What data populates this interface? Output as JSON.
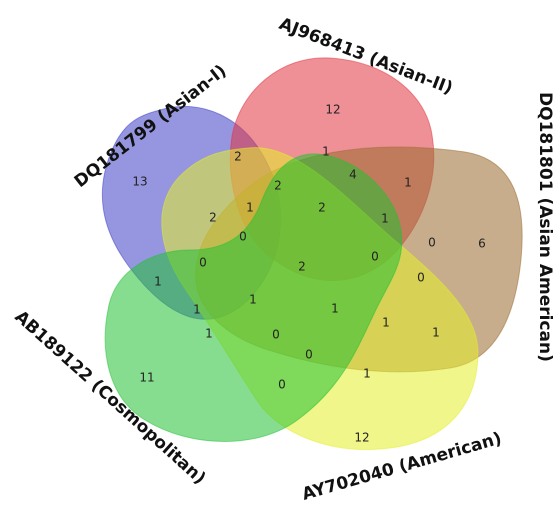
{
  "diagram": {
    "type": "venn-5-set",
    "sets": [
      {
        "id": "asian1",
        "label": "DQ181799 (Asian-I)",
        "color": "#3f3fc6"
      },
      {
        "id": "asian2",
        "label": "AJ968413 (Asian-II)",
        "color": "#e0343f"
      },
      {
        "id": "asianam",
        "label": "DQ181801 (Asian American)",
        "color": "#9a6a2e"
      },
      {
        "id": "american",
        "label": "AY702040 (American)",
        "color": "#e4ef2a"
      },
      {
        "id": "cosmo",
        "label": "AB189122 (Cosmopolitan)",
        "color": "#22c133"
      }
    ],
    "region_counts": [
      {
        "id": "r-asian1-only",
        "value": "13"
      },
      {
        "id": "r-asian2-only",
        "value": "12"
      },
      {
        "id": "r-asianam-only",
        "value": "6"
      },
      {
        "id": "r-american-only",
        "value": "12"
      },
      {
        "id": "r-cosmo-only",
        "value": "11"
      },
      {
        "id": "r-a",
        "value": "2"
      },
      {
        "id": "r-b",
        "value": "1"
      },
      {
        "id": "r-c",
        "value": "4"
      },
      {
        "id": "r-d",
        "value": "1"
      },
      {
        "id": "r-e",
        "value": "2"
      },
      {
        "id": "r-f",
        "value": "2"
      },
      {
        "id": "r-g",
        "value": "1"
      },
      {
        "id": "r-h",
        "value": "2"
      },
      {
        "id": "r-i",
        "value": "1"
      },
      {
        "id": "r-j",
        "value": "0"
      },
      {
        "id": "r-k",
        "value": "0"
      },
      {
        "id": "r-l",
        "value": "0"
      },
      {
        "id": "r-m",
        "value": "0"
      },
      {
        "id": "r-n",
        "value": "2"
      },
      {
        "id": "r-o",
        "value": "1"
      },
      {
        "id": "r-p",
        "value": "0"
      },
      {
        "id": "r-q",
        "value": "1"
      },
      {
        "id": "r-r",
        "value": "1"
      },
      {
        "id": "r-s",
        "value": "1"
      },
      {
        "id": "r-t",
        "value": "1"
      },
      {
        "id": "r-u",
        "value": "0"
      },
      {
        "id": "r-v",
        "value": "1"
      },
      {
        "id": "r-w",
        "value": "0"
      },
      {
        "id": "r-x",
        "value": "1"
      },
      {
        "id": "r-y",
        "value": "1"
      },
      {
        "id": "r-z",
        "value": "0"
      }
    ]
  }
}
